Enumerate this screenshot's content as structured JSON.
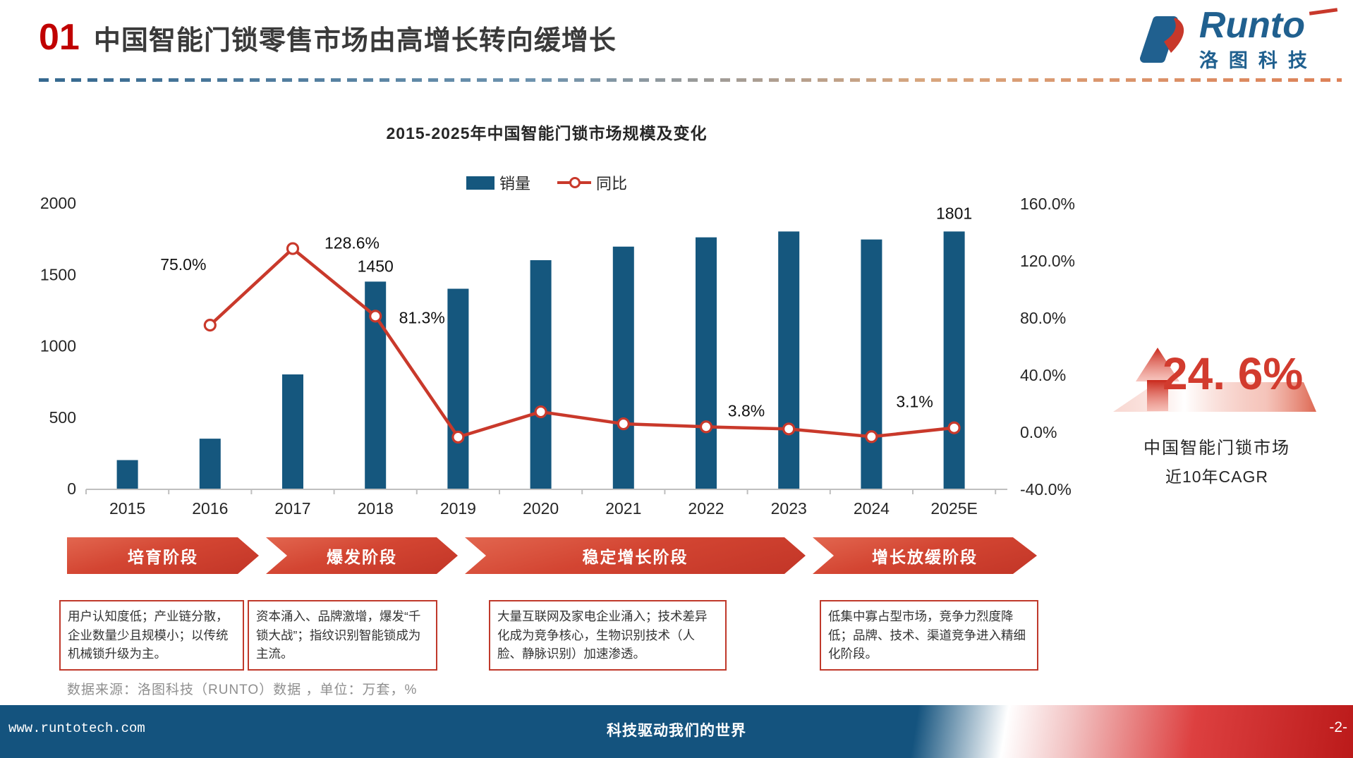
{
  "header": {
    "slide_number": "01",
    "title": "中国智能门锁零售市场由高增长转向缓增长"
  },
  "logo": {
    "brand": "Runto",
    "brand_cn": "洛图科技"
  },
  "chart_data": {
    "type": "combo-bar-line",
    "title": "2015-2025年中国智能门锁市场规模及变化",
    "categories": [
      "2015",
      "2016",
      "2017",
      "2018",
      "2019",
      "2020",
      "2021",
      "2022",
      "2023",
      "2024",
      "2025E"
    ],
    "series": [
      {
        "name": "销量",
        "type": "bar",
        "color": "#15577E",
        "values": [
          200,
          350,
          800,
          1450,
          1400,
          1600,
          1695,
          1760,
          1801,
          1745,
          1801
        ]
      },
      {
        "name": "同比",
        "type": "line",
        "color": "#C9392B",
        "values": [
          null,
          75.0,
          128.6,
          81.3,
          -3.4,
          14.3,
          5.9,
          3.8,
          2.3,
          -3.1,
          3.1
        ]
      }
    ],
    "left_axis": {
      "min": 0,
      "max": 2000,
      "ticks": [
        2000,
        1500,
        1000,
        500,
        0
      ]
    },
    "right_axis": {
      "min": -40,
      "max": 160,
      "ticks": [
        "160.0%",
        "120.0%",
        "80.0%",
        "40.0%",
        "0.0%",
        "-40.0%"
      ]
    },
    "bar_labels": {
      "2018": "1450",
      "2025E": "1801"
    },
    "line_labels": {
      "2016": "75.0%",
      "2017": "128.6%",
      "2018": "81.3%",
      "2022": "3.8%",
      "2025E": "3.1%"
    },
    "legend_position": "top-center",
    "grid": false
  },
  "highlight": {
    "value": "24. 6%",
    "caption_line1": "中国智能门锁市场",
    "caption_line2": "近10年CAGR"
  },
  "stages": [
    {
      "label": "培育阶段",
      "description": "用户认知度低；产业链分散，企业数量少且规模小；以传统机械锁升级为主。"
    },
    {
      "label": "爆发阶段",
      "description": "资本涌入、品牌激增，爆发“千锁大战”；指纹识别智能锁成为主流。"
    },
    {
      "label": "稳定增长阶段",
      "description": "大量互联网及家电企业涌入；技术差异化成为竞争核心，生物识别技术（人脸、静脉识别）加速渗透。"
    },
    {
      "label": "增长放缓阶段",
      "description": "低集中寡占型市场，竞争力烈度降低；品牌、技术、渠道竞争进入精细化阶段。"
    }
  ],
  "source_note": "数据来源：洛图科技（RUNTO）数据 ，单位：万套，%",
  "footer": {
    "website": "www.runtotech.com",
    "slogan": "科技驱动我们的世界",
    "page_number": "-2-"
  }
}
